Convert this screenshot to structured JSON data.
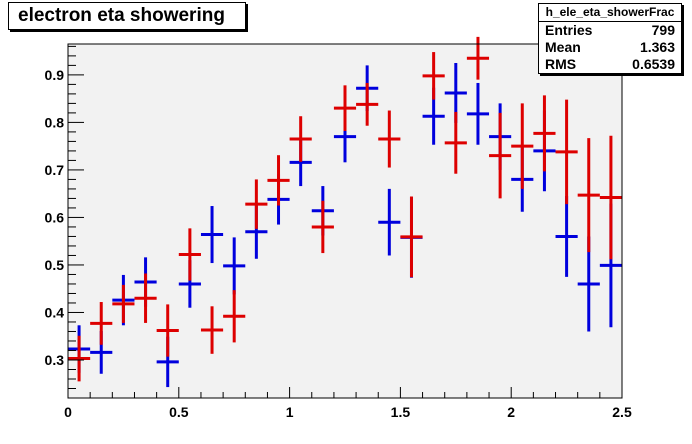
{
  "title": "electron eta showering",
  "stats": {
    "name": "h_ele_eta_showerFrac",
    "entries_label": "Entries",
    "entries_value": "799",
    "mean_label": "Mean",
    "mean_value": "1.363",
    "rms_label": "RMS",
    "rms_value": "0.6539"
  },
  "colors": {
    "series_blue": "#0000dd",
    "series_red": "#dd0000",
    "frame_bg": "#f2f2f2"
  },
  "chart_data": {
    "type": "scatter",
    "xlim": [
      0,
      2.5
    ],
    "ylim": [
      0.22,
      0.965
    ],
    "xticks": [
      0,
      0.5,
      1,
      1.5,
      2,
      2.5
    ],
    "xtick_labels": [
      "0",
      "0.5",
      "1",
      "1.5",
      "2",
      "2.5"
    ],
    "yticks": [
      0.3,
      0.4,
      0.5,
      0.6,
      0.7,
      0.8,
      0.9
    ],
    "ytick_labels": [
      "0.3",
      "0.4",
      "0.5",
      "0.6",
      "0.7",
      "0.8",
      "0.9"
    ],
    "grid": false,
    "bin_half_width": 0.05,
    "series": [
      {
        "color": "#0000dd",
        "x": [
          0.05,
          0.15,
          0.25,
          0.35,
          0.45,
          0.55,
          0.65,
          0.75,
          0.85,
          0.95,
          1.05,
          1.15,
          1.25,
          1.35,
          1.45,
          1.55,
          1.65,
          1.75,
          1.85,
          1.95,
          2.05,
          2.15,
          2.25,
          2.35,
          2.45
        ],
        "y": [
          0.323,
          0.316,
          0.426,
          0.464,
          0.296,
          0.46,
          0.564,
          0.498,
          0.57,
          0.638,
          0.716,
          0.614,
          0.77,
          0.872,
          0.59,
          0.558,
          0.813,
          0.862,
          0.818,
          0.77,
          0.68,
          0.74,
          0.56,
          0.46,
          0.499
        ],
        "err": [
          0.05,
          0.045,
          0.053,
          0.052,
          0.053,
          0.05,
          0.06,
          0.06,
          0.057,
          0.053,
          0.05,
          0.052,
          0.054,
          0.048,
          0.07,
          0.085,
          0.06,
          0.063,
          0.065,
          0.07,
          0.068,
          0.085,
          0.085,
          0.1,
          0.13
        ]
      },
      {
        "color": "#dd0000",
        "x": [
          0.05,
          0.15,
          0.25,
          0.35,
          0.45,
          0.55,
          0.65,
          0.75,
          0.85,
          0.95,
          1.05,
          1.15,
          1.25,
          1.35,
          1.45,
          1.55,
          1.65,
          1.75,
          1.85,
          1.95,
          2.05,
          2.15,
          2.25,
          2.35,
          2.45
        ],
        "y": [
          0.303,
          0.377,
          0.418,
          0.43,
          0.362,
          0.522,
          0.363,
          0.392,
          0.628,
          0.678,
          0.765,
          0.58,
          0.83,
          0.838,
          0.765,
          0.559,
          0.898,
          0.757,
          0.935,
          0.73,
          0.75,
          0.777,
          0.738,
          0.647,
          0.642
        ],
        "err": [
          0.048,
          0.045,
          0.04,
          0.052,
          0.055,
          0.055,
          0.05,
          0.055,
          0.052,
          0.053,
          0.048,
          0.055,
          0.048,
          0.045,
          0.06,
          0.085,
          0.05,
          0.065,
          0.045,
          0.09,
          0.09,
          0.08,
          0.11,
          0.12,
          0.13
        ]
      }
    ]
  }
}
